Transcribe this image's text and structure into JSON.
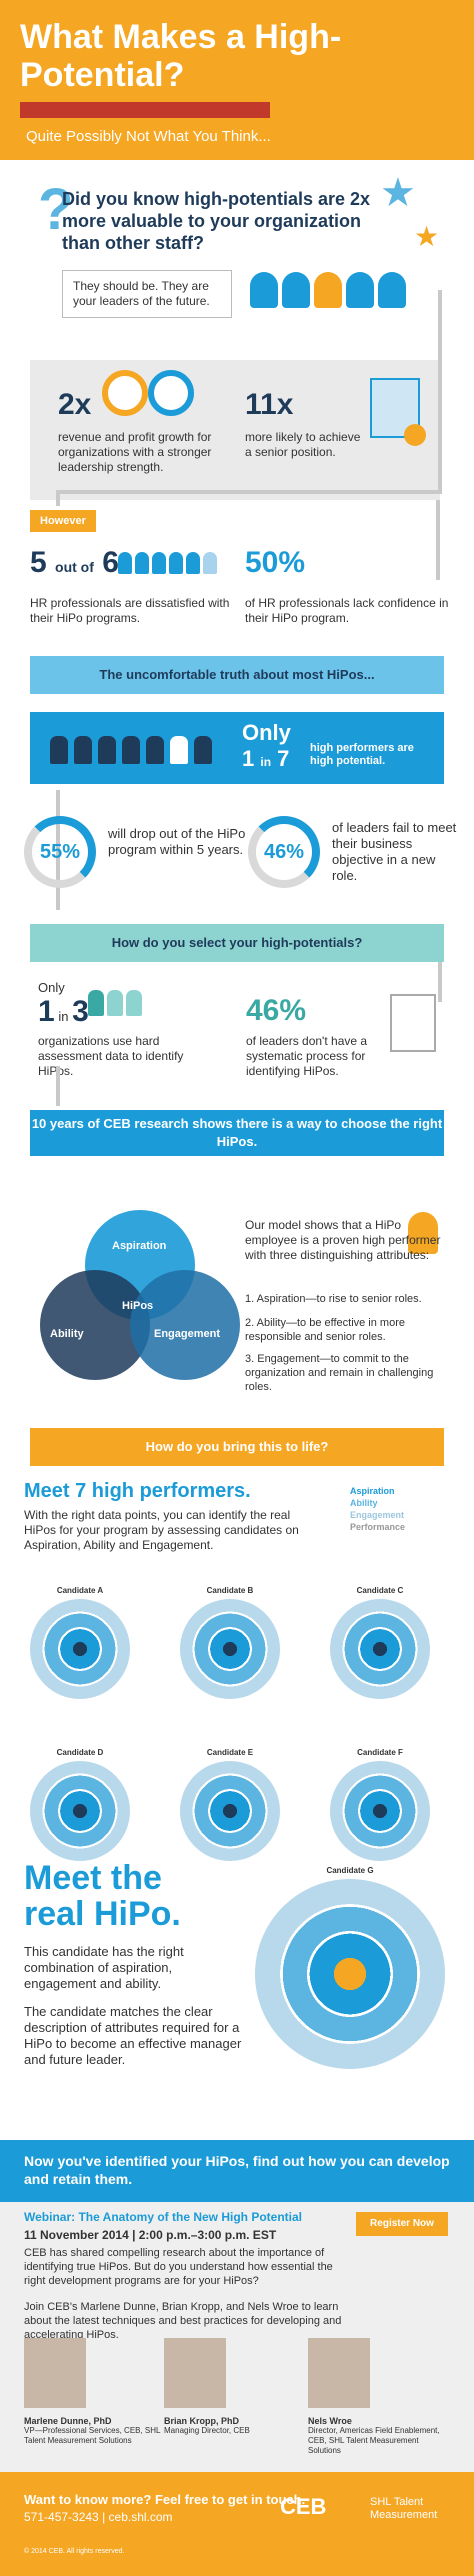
{
  "header": {
    "title": "What Makes a High-Potential?",
    "subtitle": "Quite Possibly Not What You Think..."
  },
  "intro": {
    "question": "Did you know high-potentials are 2x more valuable to your organization than other staff?",
    "bubble": "They should be. They are your leaders of the future.",
    "stat1": "2x",
    "stat1_text": "revenue and profit growth for organizations with a stronger leadership strength.",
    "stat2": "11x",
    "stat2_text": "more likely to achieve a senior position."
  },
  "however": {
    "badge": "However",
    "left_num": "5",
    "left_of": "out of",
    "left_den": "6",
    "left_text": "HR professionals are dissatisfied with their HiPo programs.",
    "right_num": "50%",
    "right_text": "of HR professionals lack confidence in their HiPo program."
  },
  "truth": {
    "banner": "The uncomfortable truth about most HiPos...",
    "only": "Only",
    "one": "1",
    "in": "in",
    "seven": "7",
    "only_text": "high performers are high potential.",
    "p55": "55%",
    "p55_text": "will drop out of the HiPo program within 5 years.",
    "p46": "46%",
    "p46_text": "of leaders fail to meet their business objective in a new role."
  },
  "select": {
    "banner": "How do you select your high-potentials?",
    "only": "Only",
    "one": "1",
    "in": "in",
    "three": "3",
    "left_text": "organizations use hard assessment data to identify HiPos.",
    "p46": "46%",
    "right_text": "of leaders don't have a systematic process for identifying HiPos."
  },
  "research": {
    "banner": "10 years of CEB research shows there is a way to choose the right HiPos."
  },
  "venn": {
    "a": "Aspiration",
    "b": "Ability",
    "c": "Engagement",
    "center": "HiPos"
  },
  "model": {
    "text": "Our model shows that a HiPo employee is a proven high performer with three distinguishing attributes:",
    "a1": "1. Aspiration—to rise to senior roles.",
    "a2": "2. Ability—to be effective in more responsible and senior roles.",
    "a3": "3. Engagement—to commit to the organization and remain in challenging roles."
  },
  "bring": {
    "banner": "How do you bring this to life?"
  },
  "meet7": {
    "title": "Meet 7 high performers.",
    "text": "With the right data points, you can identify the real HiPos for your program by assessing candidates on Aspiration, Ability and Engagement.",
    "legend": [
      "Aspiration",
      "Ability",
      "Engagement",
      "Performance"
    ],
    "candidates": [
      "Candidate A",
      "Candidate B",
      "Candidate C",
      "Candidate D",
      "Candidate E",
      "Candidate F"
    ],
    "g": "Candidate G"
  },
  "real": {
    "title": "Meet the real HiPo.",
    "p1": "This candidate has the right combination of aspiration, engagement and ability.",
    "p2": "The candidate matches the clear description of attributes required for a HiPo to become an effective manager and future leader."
  },
  "identify": {
    "text": "Now you've identified your HiPos, find out how you can develop and retain them."
  },
  "webinar": {
    "title": "Webinar: The Anatomy of the New High Potential",
    "date": "11 November 2014 | 2:00 p.m.–3:00 p.m. EST",
    "register": "Register Now",
    "p1": "CEB has shared compelling research about the importance of identifying true HiPos. But do you understand how essential the right development programs are for your HiPos?",
    "p2": "Join CEB's Marlene Dunne, Brian Kropp, and Nels Wroe to learn about the latest techniques and best practices for developing and accelerating HiPos.",
    "speakers": [
      {
        "name": "Marlene Dunne, PhD",
        "role": "VP—Professional Services, CEB, SHL Talent Measurement Solutions"
      },
      {
        "name": "Brian Kropp, PhD",
        "role": "Managing Director, CEB"
      },
      {
        "name": "Nels Wroe",
        "role": "Director, Americas Field Enablement, CEB, SHL Talent Measurement Solutions"
      }
    ]
  },
  "footer": {
    "line1": "Want to know more? Feel free to get in touch.",
    "line2": "571-457-3243 | ceb.shl.com",
    "copy": "© 2014 CEB. All rights reserved.",
    "logo": "CEB",
    "shl": "SHL Talent Measurement"
  }
}
